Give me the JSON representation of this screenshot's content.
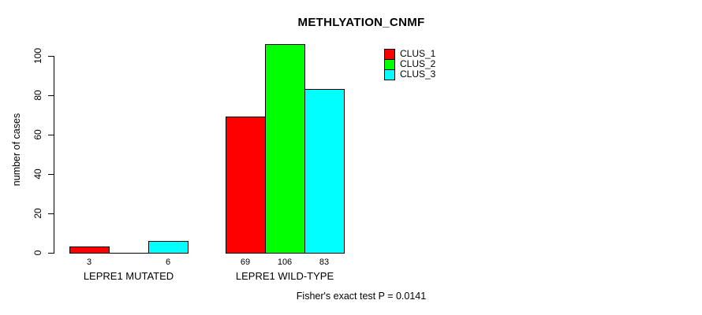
{
  "chart_data": {
    "type": "bar",
    "title": "METHLYATION_CNMF",
    "ylabel": "number of cases",
    "xlabel": "",
    "categories": [
      "LEPRE1 MUTATED",
      "LEPRE1 WILD-TYPE"
    ],
    "series": [
      {
        "name": "CLUS_1",
        "color": "#ff0000",
        "values": [
          3,
          69
        ]
      },
      {
        "name": "CLUS_2",
        "color": "#00ff00",
        "values": [
          0,
          106
        ]
      },
      {
        "name": "CLUS_3",
        "color": "#00ffff",
        "values": [
          6,
          83
        ]
      }
    ],
    "bar_value_labels": [
      "3",
      "",
      "6",
      "69",
      "106",
      "83"
    ],
    "yticks": [
      0,
      20,
      40,
      60,
      80,
      100
    ],
    "ylim": [
      0,
      106
    ],
    "grid": false,
    "legend_position": "upper-right-of-plot",
    "annotation": "Fisher's exact test P = 0.0141",
    "axis_color": "#000000",
    "background_color": "#ffffff"
  }
}
